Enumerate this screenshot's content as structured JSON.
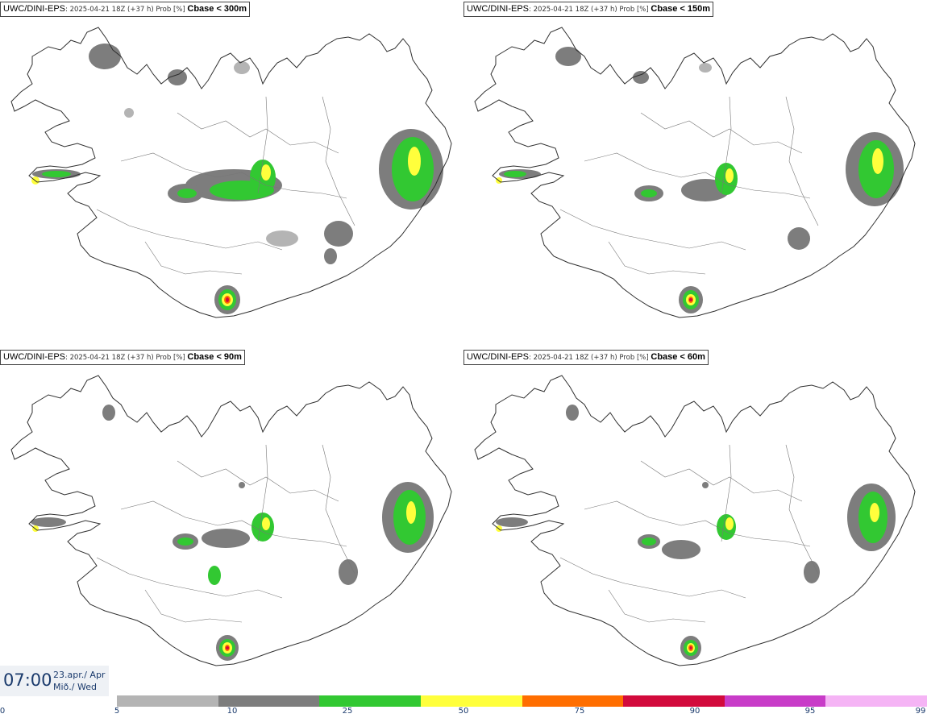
{
  "panels": [
    {
      "model": "UWC/DINI-EPS",
      "meta": ": 2025-04-21 18Z (+37 h) Prob [%] ",
      "param": "Cbase < 300m"
    },
    {
      "model": "UWC/DINI-EPS",
      "meta": ": 2025-04-21 18Z (+37 h) Prob [%] ",
      "param": "Cbase < 150m"
    },
    {
      "model": "UWC/DINI-EPS",
      "meta": ": 2025-04-21 18Z (+37 h) Prob [%] ",
      "param": "Cbase < 90m"
    },
    {
      "model": "UWC/DINI-EPS",
      "meta": ": 2025-04-21 18Z (+37 h) Prob [%] ",
      "param": "Cbase < 60m"
    }
  ],
  "valid_time": {
    "time": "07:00",
    "date_line1": "23.apr./ Apr",
    "date_line2": "Mið./ Wed"
  },
  "legend": {
    "ticks": [
      "0",
      "5",
      "10",
      "25",
      "50",
      "75",
      "90",
      "95",
      "99"
    ],
    "colors": [
      "#b4b4b4",
      "#7d7d7d",
      "#32c832",
      "#ffff3c",
      "#ff6e00",
      "#d20a3c",
      "#c83cc8",
      "#f5b4f5"
    ]
  },
  "colors": {
    "coast": "#303030",
    "gray_light": "#b4b4b4",
    "gray_dark": "#7d7d7d",
    "green": "#32c832",
    "yellow": "#ffff3c",
    "orange": "#ff6e00",
    "red": "#d20a3c"
  }
}
